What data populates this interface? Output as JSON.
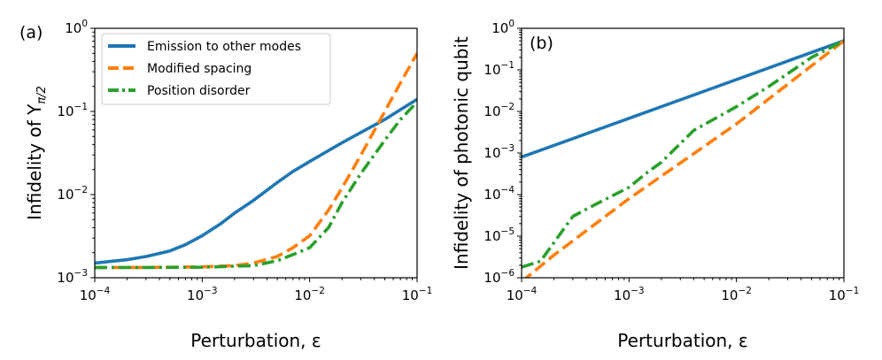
{
  "chart_data": [
    {
      "type": "line",
      "panel_label": "(a)",
      "xlabel": "Perturbation, ε",
      "ylabel": "Infidelity of Y_{π/2}",
      "xscale": "log",
      "yscale": "log",
      "xlim": [
        0.0001,
        0.1
      ],
      "ylim": [
        0.001,
        1
      ],
      "x_ticks": [
        0.0001,
        0.001,
        0.01,
        0.1
      ],
      "y_ticks": [
        0.001,
        0.01,
        0.1,
        1
      ],
      "legend_position": "top-left",
      "series": [
        {
          "name": "Emission to other modes",
          "color": "#1f77b4",
          "style": "solid",
          "x": [
            0.0001,
            0.0002,
            0.0003,
            0.0005,
            0.0007,
            0.001,
            0.0015,
            0.002,
            0.003,
            0.005,
            0.007,
            0.01,
            0.02,
            0.03,
            0.05,
            0.07,
            0.1
          ],
          "y": [
            0.0015,
            0.00165,
            0.0018,
            0.0021,
            0.0025,
            0.0032,
            0.0045,
            0.006,
            0.0085,
            0.014,
            0.019,
            0.025,
            0.042,
            0.056,
            0.08,
            0.105,
            0.14
          ]
        },
        {
          "name": "Modified spacing",
          "color": "#ff7f0e",
          "style": "dashed",
          "x": [
            0.0001,
            0.0003,
            0.001,
            0.002,
            0.003,
            0.005,
            0.007,
            0.01,
            0.015,
            0.02,
            0.03,
            0.05,
            0.07,
            0.1
          ],
          "y": [
            0.00133,
            0.00133,
            0.00135,
            0.0014,
            0.0015,
            0.0018,
            0.0023,
            0.0032,
            0.0065,
            0.012,
            0.03,
            0.1,
            0.22,
            0.5
          ]
        },
        {
          "name": "Position disorder",
          "color": "#2ca02c",
          "style": "dashdot",
          "x": [
            0.0001,
            0.0003,
            0.001,
            0.003,
            0.005,
            0.007,
            0.01,
            0.015,
            0.02,
            0.03,
            0.05,
            0.07,
            0.1
          ],
          "y": [
            0.00133,
            0.00133,
            0.00134,
            0.0014,
            0.0016,
            0.0019,
            0.0023,
            0.004,
            0.008,
            0.018,
            0.045,
            0.08,
            0.13
          ]
        }
      ]
    },
    {
      "type": "line",
      "panel_label": "(b)",
      "xlabel": "Perturbation, ε",
      "ylabel": "Infidelity of photonic qubit",
      "xscale": "log",
      "yscale": "log",
      "xlim": [
        0.0001,
        0.1
      ],
      "ylim": [
        1e-06,
        1
      ],
      "x_ticks": [
        0.0001,
        0.001,
        0.01,
        0.1
      ],
      "y_ticks": [
        1e-06,
        1e-05,
        0.0001,
        0.001,
        0.01,
        0.1,
        1
      ],
      "series": [
        {
          "name": "Emission to other modes",
          "color": "#1f77b4",
          "style": "solid",
          "x": [
            0.0001,
            0.1
          ],
          "y": [
            0.0008,
            0.5
          ]
        },
        {
          "name": "Modified spacing",
          "color": "#ff7f0e",
          "style": "dashed",
          "x": [
            0.0001,
            0.0002,
            0.001,
            0.01,
            0.1
          ],
          "y": [
            8e-07,
            3.5e-06,
            8e-05,
            0.005,
            0.5
          ]
        },
        {
          "name": "Position disorder",
          "color": "#2ca02c",
          "style": "dashdot",
          "x": [
            0.0001,
            0.00015,
            0.0002,
            0.0003,
            0.0005,
            0.001,
            0.0015,
            0.002,
            0.004,
            0.01,
            0.02,
            0.05,
            0.1
          ],
          "y": [
            1.8e-06,
            2.5e-06,
            7e-06,
            3e-05,
            6e-05,
            0.00015,
            0.00035,
            0.0006,
            0.0035,
            0.013,
            0.04,
            0.2,
            0.5
          ]
        }
      ]
    }
  ]
}
